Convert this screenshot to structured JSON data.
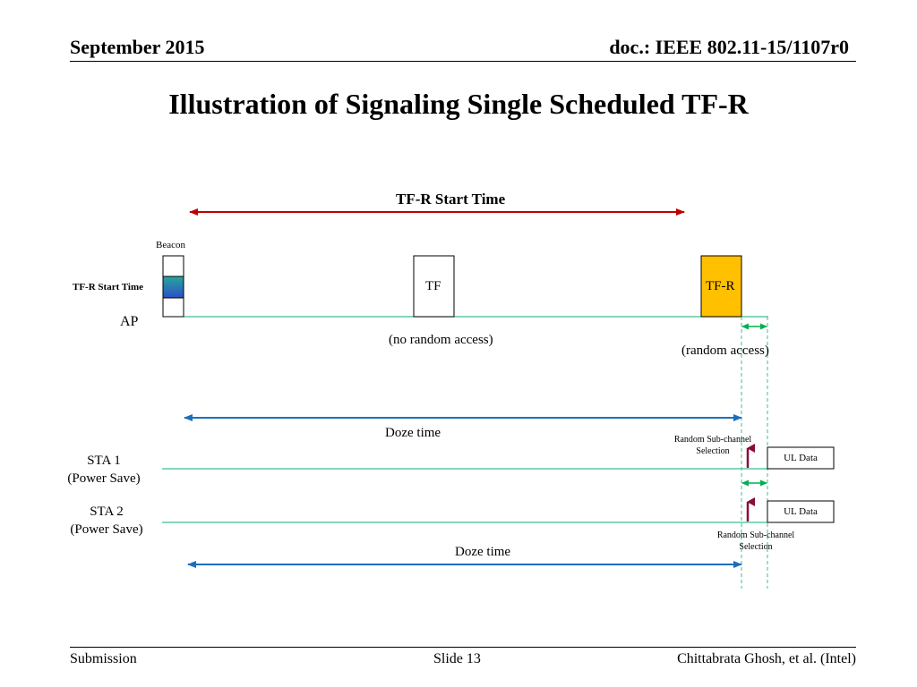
{
  "header": {
    "date": "September 2015",
    "doc": "doc.: IEEE 802.11-15/1107r0"
  },
  "title": "Illustration of Signaling Single Scheduled TF-R",
  "diagram": {
    "start_time_label": "TF-R Start Time",
    "beacon_label": "Beacon",
    "beacon_field_label": "TF-R Start Time",
    "ap_label": "AP",
    "tf_label": "TF",
    "tfr_label": "TF-R",
    "no_random_access": "(no random access)",
    "random_access": "(random access)",
    "doze_time_1": "Doze time",
    "doze_time_2": "Doze time",
    "sta1_name": "STA 1",
    "sta1_mode": "(Power Save)",
    "sta2_name": "STA 2",
    "sta2_mode": "(Power Save)",
    "rsc_1a": "Random Sub-channel",
    "rsc_1b": "Selection",
    "rsc_2a": "Random Sub-channel",
    "rsc_2b": "Selection",
    "ul_data_1": "UL Data",
    "ul_data_2": "UL Data",
    "colors": {
      "red_arrow": "#c00000",
      "blue_arrow": "#1a6fbf",
      "green": "#00b050",
      "tfr_fill": "#ffc000",
      "up_arrow": "#8b0a3c",
      "timeline": "#3cc08c"
    }
  },
  "footer": {
    "left": "Submission",
    "center": "Slide 13",
    "right": "Chittabrata Ghosh, et al. (Intel)"
  }
}
